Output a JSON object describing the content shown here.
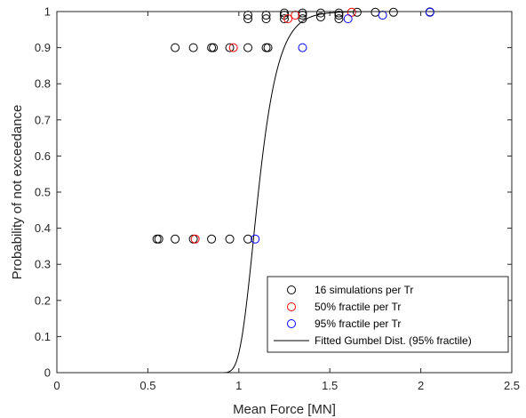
{
  "chart_data": {
    "type": "scatter",
    "xlabel": "Mean Force [MN]",
    "ylabel": "Probability of not exceedance",
    "xlim": [
      0,
      2.5
    ],
    "ylim": [
      0,
      1
    ],
    "xticks": [
      "0",
      "0.5",
      "1",
      "1.5",
      "2",
      "2.5"
    ],
    "yticks": [
      "0",
      "0.1",
      "0.2",
      "0.3",
      "0.4",
      "0.5",
      "0.6",
      "0.7",
      "0.8",
      "0.9",
      "1"
    ],
    "xtick_values": [
      0,
      0.5,
      1,
      1.5,
      2,
      2.5
    ],
    "ytick_values": [
      0,
      0.1,
      0.2,
      0.3,
      0.4,
      0.5,
      0.6,
      0.7,
      0.8,
      0.9,
      1
    ],
    "grid": false,
    "legend_position": "bottom-right",
    "series": [
      {
        "name": "16 simulations per Tr",
        "marker": "circle",
        "color": "#000000",
        "points": [
          [
            0.55,
            0.37
          ],
          [
            0.56,
            0.37
          ],
          [
            0.65,
            0.37
          ],
          [
            0.75,
            0.37
          ],
          [
            0.85,
            0.37
          ],
          [
            0.95,
            0.37
          ],
          [
            1.05,
            0.37
          ],
          [
            0.65,
            0.9
          ],
          [
            0.75,
            0.9
          ],
          [
            0.85,
            0.9
          ],
          [
            0.86,
            0.9
          ],
          [
            0.95,
            0.9
          ],
          [
            1.05,
            0.9
          ],
          [
            1.15,
            0.9
          ],
          [
            1.16,
            0.9
          ],
          [
            1.05,
            0.98
          ],
          [
            1.05,
            0.99
          ],
          [
            1.15,
            0.98
          ],
          [
            1.15,
            0.99
          ],
          [
            1.25,
            0.98
          ],
          [
            1.25,
            0.99
          ],
          [
            1.35,
            0.98
          ],
          [
            1.35,
            0.99
          ],
          [
            1.45,
            0.985
          ],
          [
            1.55,
            0.98
          ],
          [
            1.55,
            0.99
          ],
          [
            1.25,
            0.996
          ],
          [
            1.35,
            0.996
          ],
          [
            1.45,
            0.996
          ],
          [
            1.55,
            0.996
          ],
          [
            1.65,
            0.998
          ],
          [
            1.75,
            0.998
          ],
          [
            1.85,
            0.998
          ],
          [
            2.05,
            0.999
          ]
        ]
      },
      {
        "name": "50% fractile per Tr",
        "marker": "circle",
        "color": "#ff0000",
        "points": [
          [
            0.76,
            0.37
          ],
          [
            0.97,
            0.9
          ],
          [
            1.27,
            0.98
          ],
          [
            1.31,
            0.99
          ],
          [
            1.62,
            0.998
          ]
        ]
      },
      {
        "name": "95% fractile per Tr",
        "marker": "circle",
        "color": "#0000ff",
        "points": [
          [
            1.09,
            0.37
          ],
          [
            1.35,
            0.9
          ],
          [
            1.6,
            0.98
          ],
          [
            1.79,
            0.99
          ],
          [
            2.05,
            0.998
          ]
        ]
      },
      {
        "name": "Fitted Gumbel Dist. (95% fractile)",
        "marker": "line",
        "color": "#000000",
        "curve": {
          "mu": 1.08,
          "beta": 0.075,
          "x_range": [
            0.85,
            2.0
          ]
        }
      }
    ]
  }
}
